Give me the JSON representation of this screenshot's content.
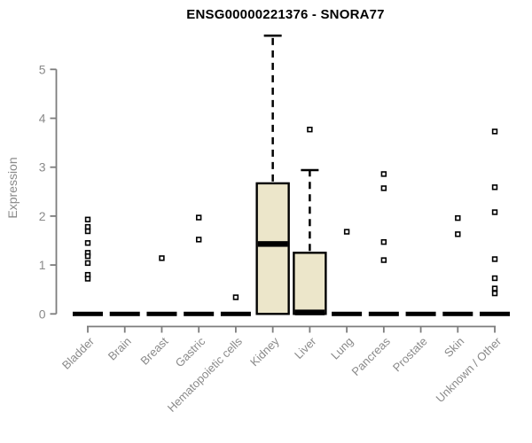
{
  "chart_data": {
    "type": "boxplot",
    "title": "ENSG00000221376 - SNORA77",
    "ylabel": "Expression",
    "xlabel": "",
    "ylim": [
      0,
      5.8
    ],
    "yticks": [
      0,
      1,
      2,
      3,
      4,
      5
    ],
    "grid": false,
    "legend": "none",
    "categories": [
      "Bladder",
      "Brain",
      "Breast",
      "Gastric",
      "Hematopoietic cells",
      "Kidney",
      "Liver",
      "Lung",
      "Pancreas",
      "Prostate",
      "Skin",
      "Unknown / Other"
    ],
    "series": [
      {
        "category": "Bladder",
        "q1": 0,
        "median": 0,
        "q3": 0,
        "whisker_low": 0,
        "whisker_high": 0,
        "outliers": [
          1.93,
          1.78,
          1.69,
          1.45,
          1.25,
          1.18,
          1.04,
          0.8,
          0.72
        ]
      },
      {
        "category": "Brain",
        "q1": 0,
        "median": 0,
        "q3": 0,
        "whisker_low": 0,
        "whisker_high": 0,
        "outliers": []
      },
      {
        "category": "Breast",
        "q1": 0,
        "median": 0,
        "q3": 0,
        "whisker_low": 0,
        "whisker_high": 0,
        "outliers": [
          1.14
        ]
      },
      {
        "category": "Gastric",
        "q1": 0,
        "median": 0,
        "q3": 0,
        "whisker_low": 0,
        "whisker_high": 0,
        "outliers": [
          1.97,
          1.52
        ]
      },
      {
        "category": "Hematopoietic cells",
        "q1": 0,
        "median": 0,
        "q3": 0,
        "whisker_low": 0,
        "whisker_high": 0,
        "outliers": [
          0.34
        ]
      },
      {
        "category": "Kidney",
        "q1": 0,
        "median": 1.43,
        "q3": 2.67,
        "whisker_low": 0,
        "whisker_high": 5.69,
        "outliers": []
      },
      {
        "category": "Liver",
        "q1": 0,
        "median": 0.03,
        "q3": 1.25,
        "whisker_low": 0,
        "whisker_high": 2.94,
        "outliers": [
          3.77
        ]
      },
      {
        "category": "Lung",
        "q1": 0,
        "median": 0,
        "q3": 0,
        "whisker_low": 0,
        "whisker_high": 0,
        "outliers": [
          1.68
        ]
      },
      {
        "category": "Pancreas",
        "q1": 0,
        "median": 0,
        "q3": 0,
        "whisker_low": 0,
        "whisker_high": 0,
        "outliers": [
          2.86,
          2.57,
          1.47,
          1.1
        ]
      },
      {
        "category": "Prostate",
        "q1": 0,
        "median": 0,
        "q3": 0,
        "whisker_low": 0,
        "whisker_high": 0,
        "outliers": []
      },
      {
        "category": "Skin",
        "q1": 0,
        "median": 0,
        "q3": 0,
        "whisker_low": 0,
        "whisker_high": 0,
        "outliers": [
          1.96,
          1.63
        ]
      },
      {
        "category": "Unknown / Other",
        "q1": 0,
        "median": 0,
        "q3": 0,
        "whisker_low": 0,
        "whisker_high": 0,
        "outliers": [
          3.73,
          2.59,
          2.08,
          1.12,
          0.73,
          0.52,
          0.42
        ]
      }
    ],
    "colors": {
      "box_fill": "#ECE6CA",
      "box_border": "#000000",
      "median": "#000000",
      "whisker": "#000000",
      "outlier_fill": "#ffffff",
      "outlier_border": "#000000",
      "axis": "#7d7d7d",
      "tick_label": "#8a8a8a",
      "title": "#000000",
      "background": "#ffffff"
    }
  }
}
